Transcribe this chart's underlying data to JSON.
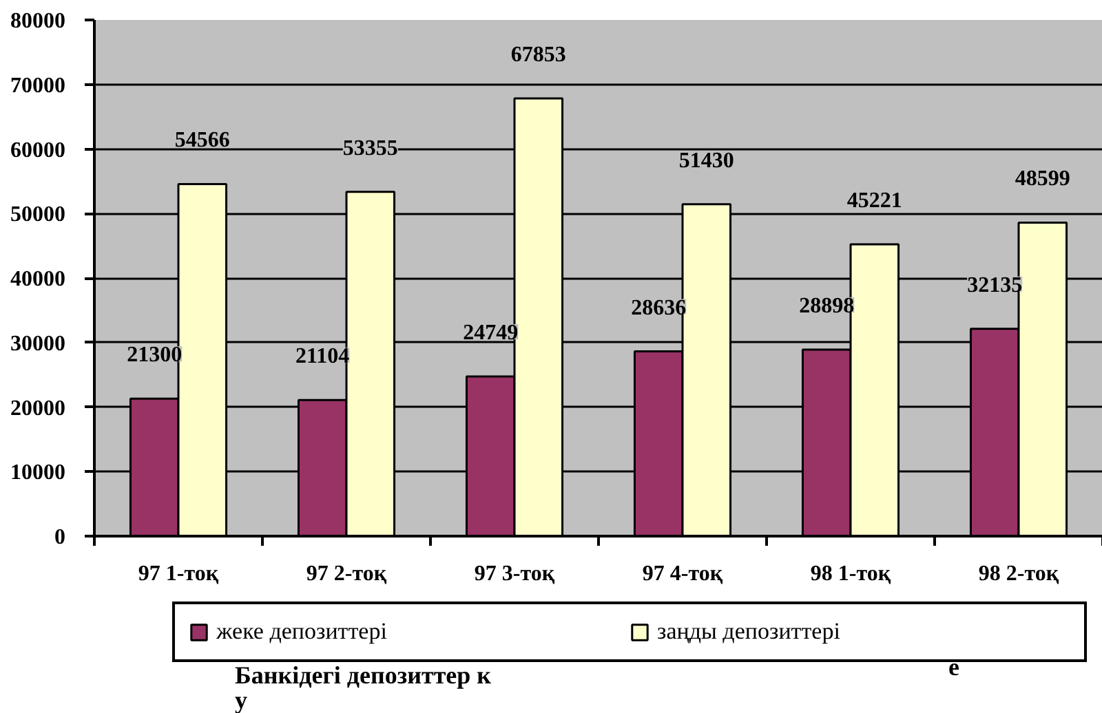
{
  "chart_data": {
    "type": "bar",
    "categories": [
      "97 1-тоқ",
      "97 2-тоқ",
      "97 3-тоқ",
      "97 4-тоқ",
      "98 1-тоқ",
      "98 2-тоқ"
    ],
    "series": [
      {
        "name": "жеке депозиттері",
        "color": "#993366",
        "values": [
          21300,
          21104,
          24749,
          28636,
          28898,
          32135
        ]
      },
      {
        "name": "заңды депозиттері",
        "color": "#ffffcc",
        "values": [
          54566,
          53355,
          67853,
          51430,
          45221,
          48599
        ]
      }
    ],
    "ylim": [
      0,
      80000
    ],
    "yticks": [
      0,
      10000,
      20000,
      30000,
      40000,
      50000,
      60000,
      70000,
      80000
    ],
    "grid": "y",
    "legend": "bottom",
    "data_labels": true,
    "annotations": [
      "Банкідегі депозиттер к",
      "у",
      "е"
    ]
  }
}
